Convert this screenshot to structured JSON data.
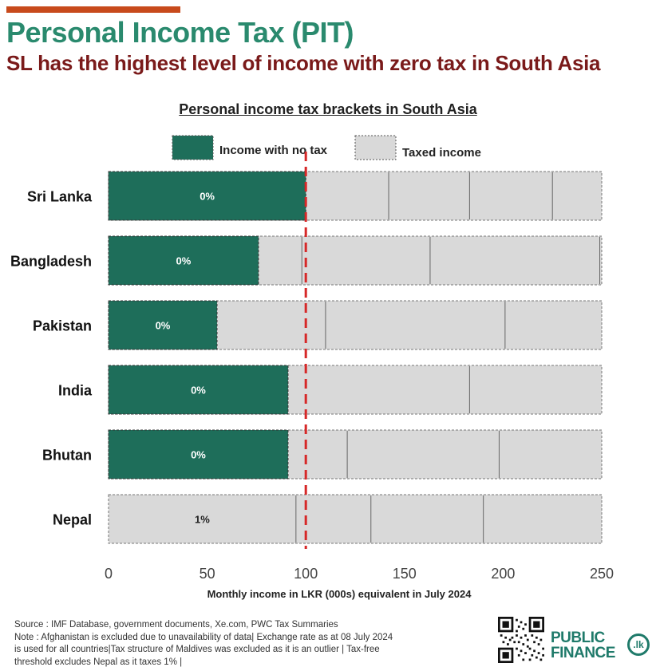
{
  "header": {
    "title": "Personal Income Tax (PIT)",
    "subtitle": "SL has the highest level of income with zero tax in South Asia"
  },
  "colors": {
    "bar_accent": "#c84a1c",
    "title_green": "#2a8a6e",
    "subtitle_red": "#7a1a1a",
    "no_tax": "#1e6e5a",
    "taxed": "#d9d9d9",
    "reference_line": "#d62828"
  },
  "chart_data": {
    "type": "bar",
    "orientation": "horizontal",
    "stacked": true,
    "title": "Personal income tax brackets in South Asia",
    "xlabel": "Monthly income in LKR (000s) equivalent in July 2024",
    "ylabel": "",
    "xlim": [
      0,
      250
    ],
    "xticks": [
      0,
      50,
      100,
      150,
      200,
      250
    ],
    "legend": {
      "placement": "top",
      "entries": [
        {
          "name": "Income with no tax",
          "color": "#1e6e5a"
        },
        {
          "name": "Taxed income",
          "color": "#d9d9d9"
        }
      ]
    },
    "reference_line": {
      "x": 100,
      "style": "dashed",
      "color": "#d62828"
    },
    "grid": false,
    "categories": [
      "Sri Lanka",
      "Bangladesh",
      "Pakistan",
      "India",
      "Bhutan",
      "Nepal"
    ],
    "rows": [
      {
        "country": "Sri Lanka",
        "no_tax_limit": 100,
        "bracket_breaks": [
          142,
          183,
          225
        ],
        "label": "0%"
      },
      {
        "country": "Bangladesh",
        "no_tax_limit": 76,
        "bracket_breaks": [
          98,
          163,
          249
        ],
        "label": "0%"
      },
      {
        "country": "Pakistan",
        "no_tax_limit": 55,
        "bracket_breaks": [
          110,
          201
        ],
        "label": "0%"
      },
      {
        "country": "India",
        "no_tax_limit": 91,
        "bracket_breaks": [
          183
        ],
        "label": "0%"
      },
      {
        "country": "Bhutan",
        "no_tax_limit": 91,
        "bracket_breaks": [
          121,
          198
        ],
        "label": "0%"
      },
      {
        "country": "Nepal",
        "no_tax_limit": 0,
        "bracket_breaks": [
          95,
          133,
          190
        ],
        "label": "1%"
      }
    ]
  },
  "footer": {
    "source": "Source : IMF Database, government documents, Xe.com, PWC Tax Summaries",
    "note_line1": "Note : Afghanistan is excluded due to unavailability of data| Exchange rate as at 08 July 2024",
    "note_line2": "is used for all countries|Tax structure of Maldives was excluded as it is an outlier | Tax-free",
    "note_line3": "threshold excludes Nepal as it taxes 1% |"
  },
  "logo": {
    "line1": "PUBLIC",
    "line2": "FINANCE",
    "badge": ".lk"
  }
}
